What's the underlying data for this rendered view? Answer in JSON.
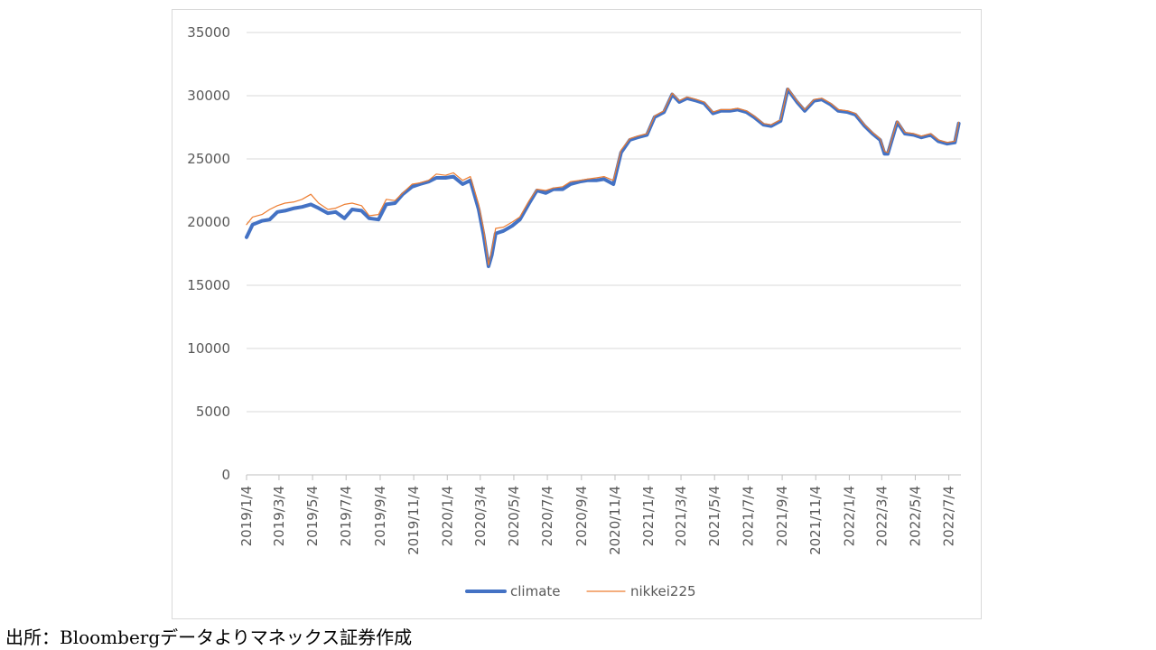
{
  "source_note": "出所：Bloombergデータよりマネックス証券作成",
  "colors": {
    "climate": "#4472C4",
    "nikkei225": "#ED7D31",
    "grid": "#d9d9d9",
    "axis": "#bfbfbf",
    "text": "#595959"
  },
  "chart_data": {
    "type": "line",
    "title": "",
    "xlabel": "",
    "ylabel": "",
    "ylim": [
      0,
      35000
    ],
    "yticks": [
      0,
      5000,
      10000,
      15000,
      20000,
      25000,
      30000,
      35000
    ],
    "xticks": [
      "2019/1/4",
      "2019/3/4",
      "2019/5/4",
      "2019/7/4",
      "2019/9/4",
      "2019/11/4",
      "2020/1/4",
      "2020/3/4",
      "2020/5/4",
      "2020/7/4",
      "2020/9/4",
      "2020/11/4",
      "2021/1/4",
      "2021/3/4",
      "2021/5/4",
      "2021/7/4",
      "2021/9/4",
      "2021/11/4",
      "2022/1/4",
      "2022/3/4",
      "2022/5/4",
      "2022/7/4"
    ],
    "grid": true,
    "legend": "bottom-center",
    "x": [
      "2019/1/4",
      "2019/1/15",
      "2019/2/1",
      "2019/2/15",
      "2019/3/1",
      "2019/3/15",
      "2019/4/1",
      "2019/4/15",
      "2019/5/1",
      "2019/5/15",
      "2019/6/1",
      "2019/6/15",
      "2019/7/1",
      "2019/7/15",
      "2019/8/1",
      "2019/8/15",
      "2019/9/1",
      "2019/9/15",
      "2019/10/1",
      "2019/10/15",
      "2019/11/1",
      "2019/11/15",
      "2019/12/1",
      "2019/12/15",
      "2020/1/1",
      "2020/1/15",
      "2020/2/1",
      "2020/2/15",
      "2020/3/1",
      "2020/3/10",
      "2020/3/19",
      "2020/3/25",
      "2020/4/1",
      "2020/4/15",
      "2020/5/1",
      "2020/5/15",
      "2020/6/1",
      "2020/6/15",
      "2020/7/1",
      "2020/7/15",
      "2020/8/1",
      "2020/8/15",
      "2020/9/1",
      "2020/9/15",
      "2020/10/1",
      "2020/10/15",
      "2020/11/1",
      "2020/11/15",
      "2020/12/1",
      "2020/12/15",
      "2021/1/1",
      "2021/1/15",
      "2021/2/1",
      "2021/2/16",
      "2021/3/1",
      "2021/3/15",
      "2021/4/1",
      "2021/4/15",
      "2021/5/1",
      "2021/5/15",
      "2021/6/1",
      "2021/6/15",
      "2021/7/1",
      "2021/7/15",
      "2021/8/1",
      "2021/8/15",
      "2021/9/1",
      "2021/9/14",
      "2021/10/1",
      "2021/10/15",
      "2021/11/1",
      "2021/11/15",
      "2021/12/1",
      "2021/12/15",
      "2022/1/1",
      "2022/1/15",
      "2022/2/1",
      "2022/2/15",
      "2022/3/1",
      "2022/3/9",
      "2022/3/15",
      "2022/4/1",
      "2022/4/15",
      "2022/5/1",
      "2022/5/15",
      "2022/6/1",
      "2022/6/15",
      "2022/7/1",
      "2022/7/15",
      "2022/7/22"
    ],
    "series": [
      {
        "name": "climate",
        "values": [
          18800,
          19800,
          20100,
          20200,
          20800,
          20900,
          21100,
          21200,
          21400,
          21100,
          20700,
          20800,
          20300,
          21000,
          20900,
          20300,
          20200,
          21400,
          21500,
          22200,
          22800,
          23000,
          23200,
          23500,
          23500,
          23600,
          23000,
          23300,
          21000,
          19000,
          16500,
          17400,
          19100,
          19300,
          19700,
          20200,
          21500,
          22500,
          22300,
          22600,
          22600,
          23000,
          23200,
          23300,
          23300,
          23400,
          23000,
          25500,
          26500,
          26700,
          26900,
          28300,
          28700,
          30100,
          29500,
          29800,
          29600,
          29400,
          28600,
          28800,
          28800,
          28900,
          28700,
          28300,
          27700,
          27600,
          28000,
          30500,
          29500,
          28800,
          29600,
          29700,
          29300,
          28800,
          28700,
          28500,
          27600,
          27000,
          26500,
          25400,
          25400,
          27900,
          27000,
          26900,
          26700,
          26900,
          26400,
          26200,
          26300,
          27800
        ]
      },
      {
        "name": "nikkei225",
        "values": [
          19800,
          20400,
          20600,
          21000,
          21300,
          21500,
          21600,
          21800,
          22200,
          21500,
          21000,
          21100,
          21400,
          21500,
          21300,
          20500,
          20600,
          21800,
          21700,
          22300,
          23000,
          23100,
          23300,
          23800,
          23700,
          23900,
          23300,
          23600,
          21400,
          19500,
          16600,
          17800,
          19500,
          19600,
          20000,
          20400,
          21700,
          22600,
          22500,
          22700,
          22800,
          23200,
          23300,
          23400,
          23500,
          23600,
          23300,
          25700,
          26600,
          26800,
          27000,
          28400,
          28800,
          30200,
          29600,
          29900,
          29700,
          29500,
          28700,
          28900,
          28900,
          29000,
          28800,
          28400,
          27800,
          27700,
          28100,
          30600,
          29600,
          28900,
          29700,
          29800,
          29400,
          28900,
          28800,
          28600,
          27700,
          27100,
          26600,
          25600,
          25500,
          28000,
          27100,
          27000,
          26800,
          27000,
          26500,
          26300,
          26400,
          27900
        ]
      }
    ]
  }
}
